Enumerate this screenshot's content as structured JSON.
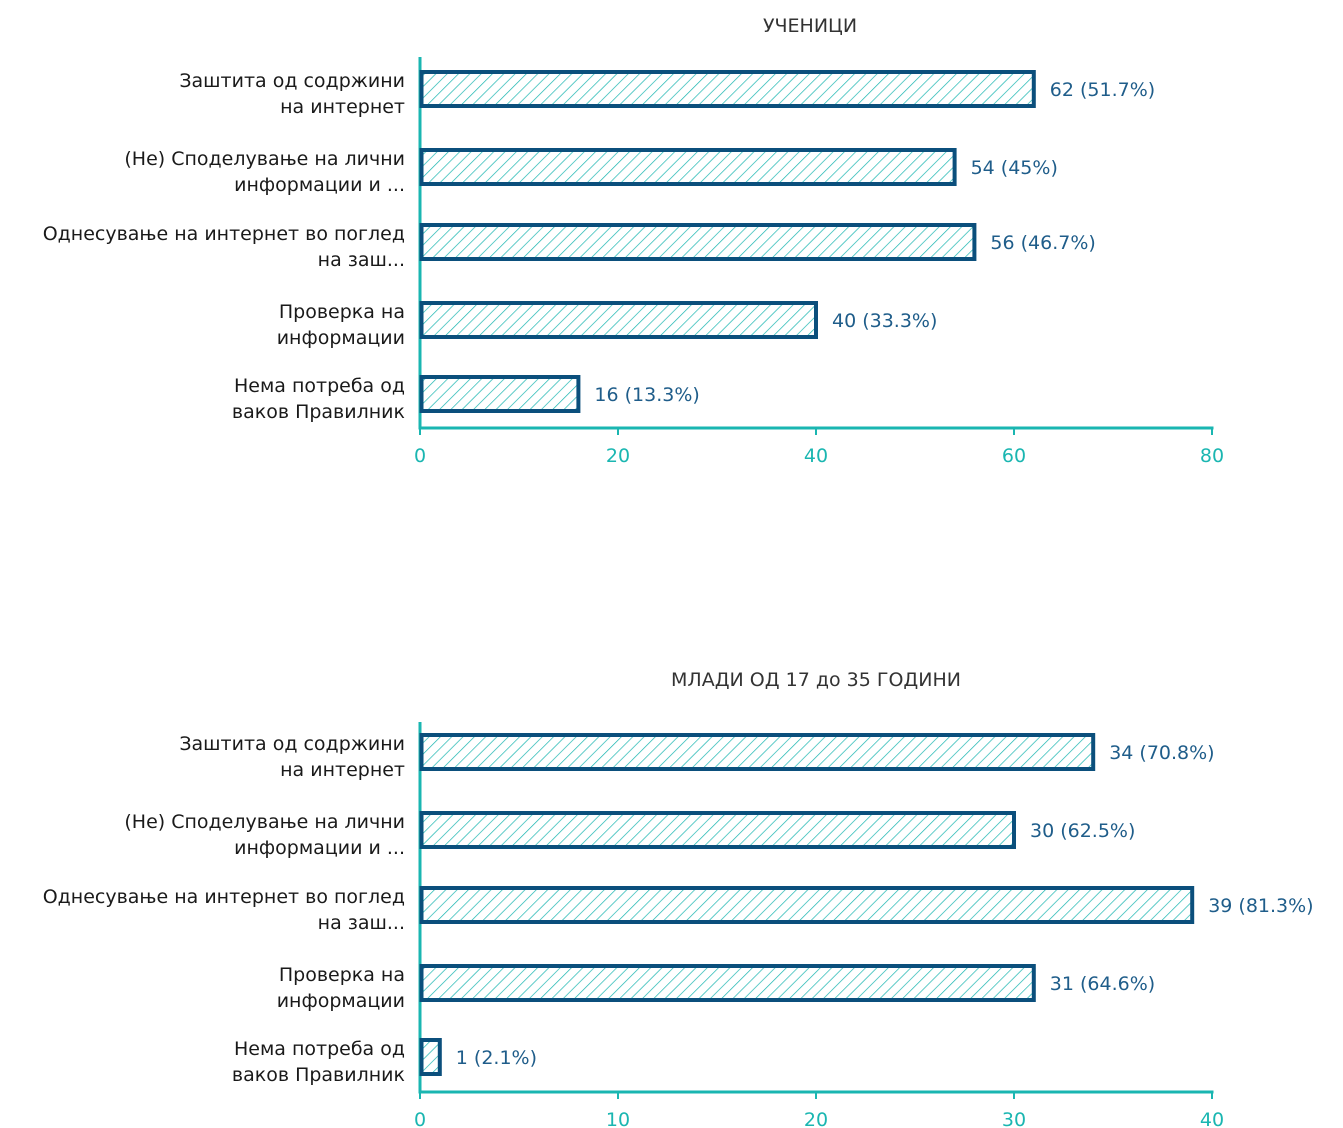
{
  "colors": {
    "axis": "#1ab6b1",
    "bar_border": "#0b4f7c",
    "hatch": "#1ab6b1",
    "value_text": "#1f5d8a",
    "tick_text": "#1ab6b1"
  },
  "chart_data": [
    {
      "type": "bar",
      "orientation": "horizontal",
      "title": "УЧЕНИЦИ",
      "categories": [
        [
          "Заштита од содржини",
          "на интернет"
        ],
        [
          "(Не) Споделување на лични",
          "информации и ..."
        ],
        [
          "Однесување на интернет во поглед",
          "на заш..."
        ],
        [
          "Проверка на",
          "информации"
        ],
        [
          "Нема потреба од",
          "ваков Правилник"
        ]
      ],
      "values": [
        62,
        54,
        56,
        40,
        16
      ],
      "labels": [
        "62 (51.7%)",
        "54 (45%)",
        "56 (46.7%)",
        "40 (33.3%)",
        "16 (13.3%)"
      ],
      "xlim": [
        0,
        80
      ],
      "ticks": [
        "0",
        "20",
        "40",
        "60",
        "80"
      ],
      "grid": false,
      "bar_fill": "hatched"
    },
    {
      "type": "bar",
      "orientation": "horizontal",
      "title": "МЛАДИ ОД 17 до 35 ГОДИНИ",
      "categories": [
        [
          "Заштита од содржини",
          "на интернет"
        ],
        [
          "(Не) Споделување на лични",
          "информации и ..."
        ],
        [
          "Однесување на интернет во поглед",
          "на заш..."
        ],
        [
          "Проверка на",
          "информации"
        ],
        [
          "Нема потреба од",
          "ваков Правилник"
        ]
      ],
      "values": [
        34,
        30,
        39,
        31,
        1
      ],
      "labels": [
        "34 (70.8%)",
        "30 (62.5%)",
        "39 (81.3%)",
        "31 (64.6%)",
        "1 (2.1%)"
      ],
      "xlim": [
        0,
        40
      ],
      "ticks": [
        "0",
        "10",
        "20",
        "30",
        "40"
      ],
      "grid": false,
      "bar_fill": "hatched"
    }
  ]
}
